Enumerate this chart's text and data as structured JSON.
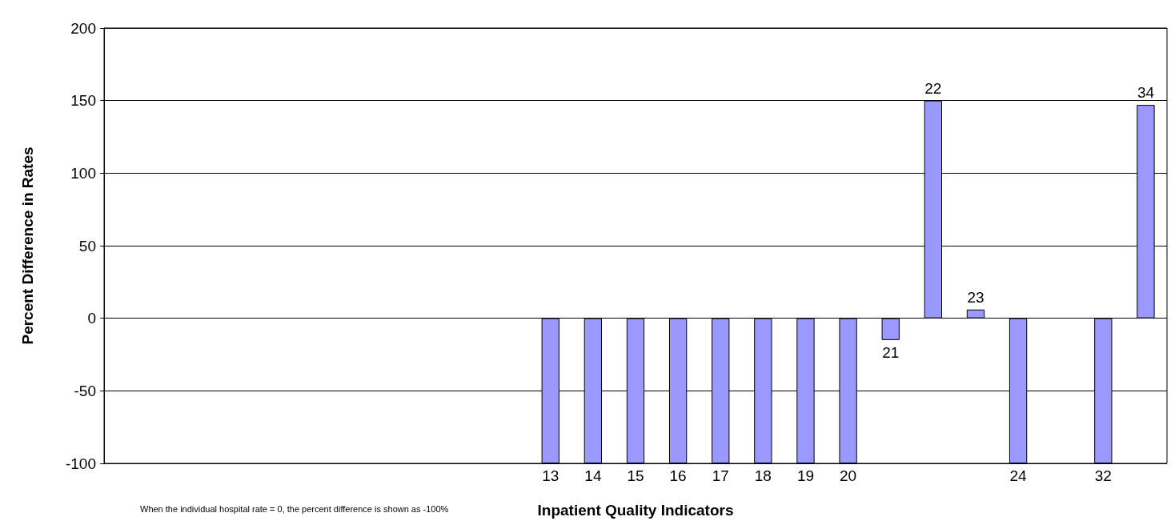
{
  "chart_data": {
    "type": "bar",
    "xlabel": "Inpatient Quality Indicators",
    "ylabel": "Percent Difference in Rates",
    "categories": [
      null,
      null,
      null,
      null,
      null,
      null,
      null,
      null,
      null,
      null,
      "13",
      "14",
      "15",
      "16",
      "17",
      "18",
      "19",
      "20",
      "21",
      "22",
      "23",
      "24",
      null,
      "32",
      "34"
    ],
    "values": [
      null,
      null,
      null,
      null,
      null,
      null,
      null,
      null,
      null,
      null,
      -100,
      -100,
      -100,
      -100,
      -100,
      -100,
      -100,
      -100,
      -15,
      150,
      6,
      -100,
      null,
      -100,
      147
    ],
    "color": "#9999ff",
    "ylim": [
      -100,
      200
    ],
    "yticks": [
      -100,
      -50,
      0,
      50,
      100,
      150,
      200
    ],
    "grid": "y",
    "annotations": [
      "When the individual hospital rate = 0, the percent difference is shown as -100%"
    ]
  }
}
